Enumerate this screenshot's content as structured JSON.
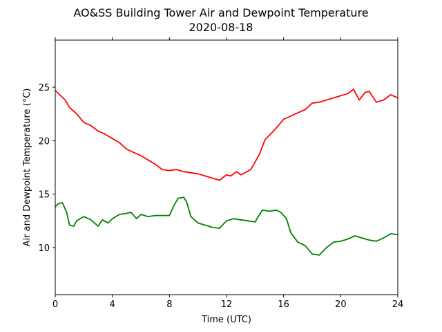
{
  "chart_data": {
    "type": "line",
    "title": "AO&SS Building Tower Air and Dewpoint Temperature",
    "subtitle": "2020-08-18",
    "xlabel": "Time (UTC)",
    "ylabel": "Air and Dewpoint Temperature (°C)",
    "xlim": [
      0,
      24
    ],
    "ylim": [
      5.6,
      29.4
    ],
    "xticks": [
      0,
      4,
      8,
      12,
      16,
      20,
      24
    ],
    "xtick_labels": [
      "0",
      "4",
      "8",
      "12",
      "16",
      "20",
      "24"
    ],
    "yticks": [
      10,
      15,
      20,
      25
    ],
    "ytick_labels": [
      "10",
      "15",
      "20",
      "25"
    ],
    "grid": false,
    "series": [
      {
        "color": "#ff0000",
        "x": [
          0,
          0.3,
          0.7,
          1.0,
          1.5,
          2.0,
          2.5,
          3.0,
          3.5,
          4.0,
          4.5,
          5.0,
          5.5,
          6.0,
          6.5,
          7.0,
          7.5,
          8.0,
          8.5,
          9.0,
          9.5,
          10.0,
          10.5,
          11.0,
          11.5,
          12.0,
          12.3,
          12.7,
          13.0,
          13.3,
          13.7,
          14.0,
          14.3,
          14.7,
          15.0,
          15.5,
          16.0,
          16.5,
          17.0,
          17.5,
          18.0,
          18.5,
          19.0,
          19.5,
          20.0,
          20.5,
          20.9,
          21.3,
          21.7,
          22.0,
          22.5,
          23.0,
          23.5,
          24.0
        ],
        "values": [
          24.7,
          24.3,
          23.8,
          23.1,
          22.5,
          21.7,
          21.4,
          20.9,
          20.6,
          20.2,
          19.8,
          19.2,
          18.9,
          18.6,
          18.2,
          17.8,
          17.3,
          17.2,
          17.3,
          17.1,
          17.0,
          16.9,
          16.7,
          16.5,
          16.3,
          16.8,
          16.7,
          17.1,
          16.8,
          17.0,
          17.3,
          18.0,
          18.7,
          20.1,
          20.5,
          21.2,
          22.0,
          22.3,
          22.6,
          22.9,
          23.5,
          23.6,
          23.8,
          24.0,
          24.2,
          24.4,
          24.8,
          23.8,
          24.5,
          24.6,
          23.6,
          23.8,
          24.3,
          24.0
        ]
      },
      {
        "color": "#008000",
        "x": [
          0,
          0.2,
          0.5,
          0.8,
          1.0,
          1.3,
          1.5,
          2.0,
          2.5,
          3.0,
          3.3,
          3.7,
          4.0,
          4.5,
          5.0,
          5.3,
          5.7,
          6.0,
          6.5,
          7.0,
          7.5,
          8.0,
          8.3,
          8.6,
          9.0,
          9.2,
          9.5,
          10.0,
          10.5,
          11.0,
          11.5,
          12.0,
          12.5,
          13.0,
          13.5,
          14.0,
          14.5,
          15.0,
          15.5,
          15.8,
          16.2,
          16.5,
          17.0,
          17.5,
          18.0,
          18.5,
          19.0,
          19.5,
          20.0,
          20.5,
          21.0,
          21.5,
          22.0,
          22.5,
          23.0,
          23.5,
          24.0
        ],
        "values": [
          13.8,
          14.1,
          14.2,
          13.3,
          12.1,
          12.0,
          12.5,
          12.9,
          12.6,
          12.0,
          12.6,
          12.3,
          12.7,
          13.1,
          13.2,
          13.3,
          12.7,
          13.1,
          12.9,
          13.0,
          13.0,
          13.0,
          13.9,
          14.6,
          14.7,
          14.3,
          12.9,
          12.3,
          12.1,
          11.9,
          11.8,
          12.5,
          12.7,
          12.6,
          12.5,
          12.4,
          13.5,
          13.4,
          13.5,
          13.3,
          12.7,
          11.4,
          10.5,
          10.2,
          9.4,
          9.3,
          10.0,
          10.5,
          10.6,
          10.8,
          11.1,
          10.9,
          10.7,
          10.6,
          10.9,
          11.3,
          11.2
        ]
      }
    ]
  }
}
